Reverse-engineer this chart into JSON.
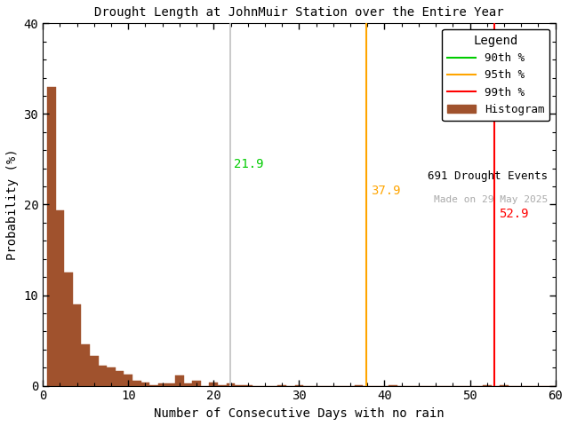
{
  "title": "Drought Length at JohnMuir Station over the Entire Year",
  "xlabel": "Number of Consecutive Days with no rain",
  "ylabel": "Probability (%)",
  "xlim": [
    0,
    60
  ],
  "ylim": [
    0,
    40
  ],
  "xticks": [
    0,
    10,
    20,
    30,
    40,
    50,
    60
  ],
  "yticks": [
    0,
    10,
    20,
    30,
    40
  ],
  "bar_color": "#A0522D",
  "bar_edgecolor": "#A0522D",
  "percentile_90_x": 21.9,
  "percentile_95_x": 37.9,
  "percentile_99_x": 52.9,
  "percentile_90_color": "#C0C0C0",
  "percentile_95_color": "#FFA500",
  "percentile_99_color": "#FF0000",
  "percentile_90_label_color": "#00CC00",
  "n_events": 691,
  "made_on": "Made on 29 May 2025",
  "legend_title": "Legend",
  "hist_values": [
    33.0,
    19.4,
    12.5,
    9.0,
    4.6,
    3.3,
    2.2,
    2.0,
    1.6,
    1.2,
    0.6,
    0.4,
    0.1,
    0.3,
    0.3,
    1.1,
    0.3,
    0.6,
    0.0,
    0.4,
    0.1,
    0.3,
    0.1,
    0.1,
    0.0,
    0.0,
    0.0,
    0.1,
    0.0,
    0.1,
    0.0,
    0.0,
    0.0,
    0.0,
    0.0,
    0.0,
    0.1,
    0.0,
    0.0,
    0.0,
    0.1,
    0.0,
    0.0,
    0.0,
    0.0,
    0.0,
    0.0,
    0.0,
    0.0,
    0.0,
    0.0,
    0.1,
    0.0,
    0.1,
    0.0,
    0.0,
    0.0,
    0.0,
    0.0,
    0.0
  ],
  "bin_width": 1,
  "font_family": "monospace",
  "figsize": [
    6.4,
    4.8
  ],
  "dpi": 100
}
